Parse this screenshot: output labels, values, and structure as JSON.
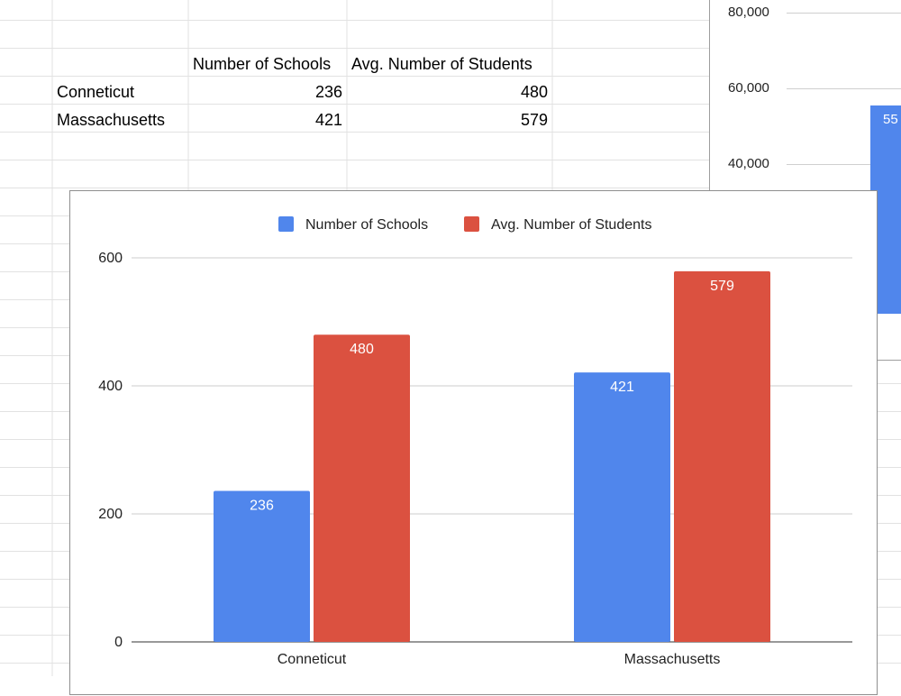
{
  "sheet": {
    "header_row": [
      "Number of Schools",
      "Avg. Number of Students"
    ],
    "rows": [
      {
        "state": "Conneticut",
        "schools": "236",
        "students": "480"
      },
      {
        "state": "Massachusetts",
        "schools": "421",
        "students": "579"
      }
    ]
  },
  "background_chart": {
    "ticks": [
      "80,000",
      "60,000",
      "40,000"
    ],
    "bar_label": "55"
  },
  "colors": {
    "schools": "#5086ec",
    "students": "#db5140"
  },
  "chart_data": {
    "type": "bar",
    "title": "",
    "xlabel": "",
    "ylabel": "",
    "categories": [
      "Conneticut",
      "Massachusetts"
    ],
    "series": [
      {
        "name": "Number of Schools",
        "values": [
          236,
          421
        ]
      },
      {
        "name": "Avg. Number of Students",
        "values": [
          480,
          579
        ]
      }
    ],
    "ylim": [
      0,
      600
    ],
    "yticks": [
      0,
      200,
      400,
      600
    ],
    "legend": "top",
    "grid": true
  }
}
